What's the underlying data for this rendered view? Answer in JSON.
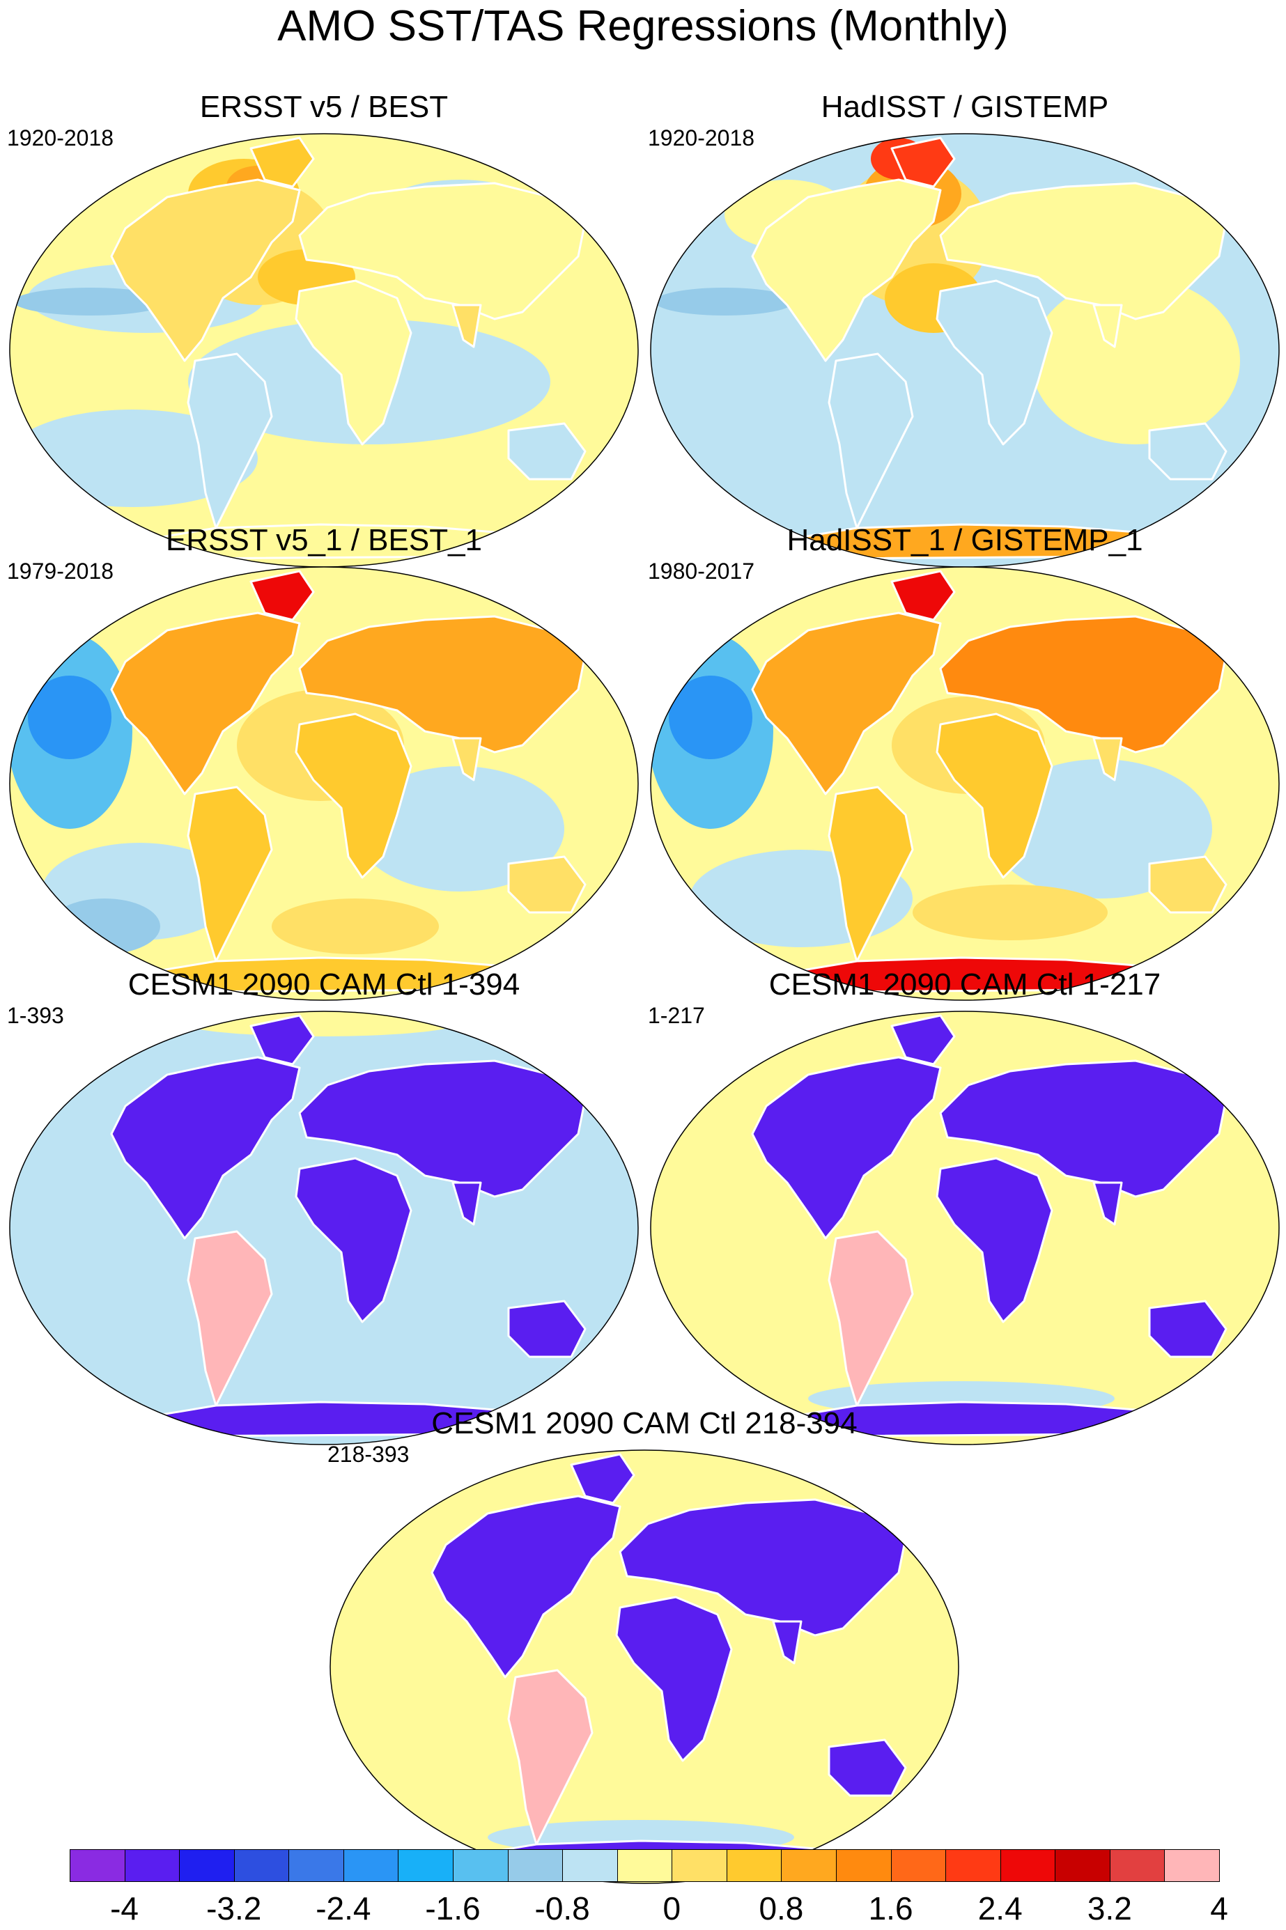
{
  "title": "AMO SST/TAS Regressions (Monthly)",
  "panels": [
    {
      "title": "ERSST v5 / BEST",
      "period": "1920-2018",
      "pattern": "obs_long"
    },
    {
      "title": "HadISST / GISTEMP",
      "period": "1920-2018",
      "pattern": "obs_long2"
    },
    {
      "title": "ERSST v5_1 / BEST_1",
      "period": "1979-2018",
      "pattern": "obs_recent"
    },
    {
      "title": "HadISST_1 / GISTEMP_1",
      "period": "1980-2017",
      "pattern": "obs_recent2"
    },
    {
      "title": "CESM1 2090 CAM Ctl 1-394",
      "period": "1-393",
      "pattern": "model_blue"
    },
    {
      "title": "CESM1 2090 CAM Ctl 1-217",
      "period": "1-217",
      "pattern": "model_yellow"
    },
    {
      "title": "CESM1 2090 CAM Ctl 218-394",
      "period": "218-393",
      "pattern": "model_yellow"
    }
  ],
  "colorbar": {
    "colors": [
      "#8a2be2",
      "#5a1ef0",
      "#1f1ff0",
      "#2d4fe0",
      "#3a78e8",
      "#2a95f5",
      "#18b0f8",
      "#58c0f0",
      "#96cbe9",
      "#bde3f3",
      "#fffa9a",
      "#ffe066",
      "#ffca2e",
      "#ffa81f",
      "#ff8a0f",
      "#ff6818",
      "#ff3a14",
      "#ee0808",
      "#c80000",
      "#e24040",
      "#ffb6b8"
    ],
    "labels": [
      "-4",
      "-3.2",
      "-2.4",
      "-1.6",
      "-0.8",
      "0",
      "0.8",
      "1.6",
      "2.4",
      "3.2",
      "4"
    ]
  }
}
